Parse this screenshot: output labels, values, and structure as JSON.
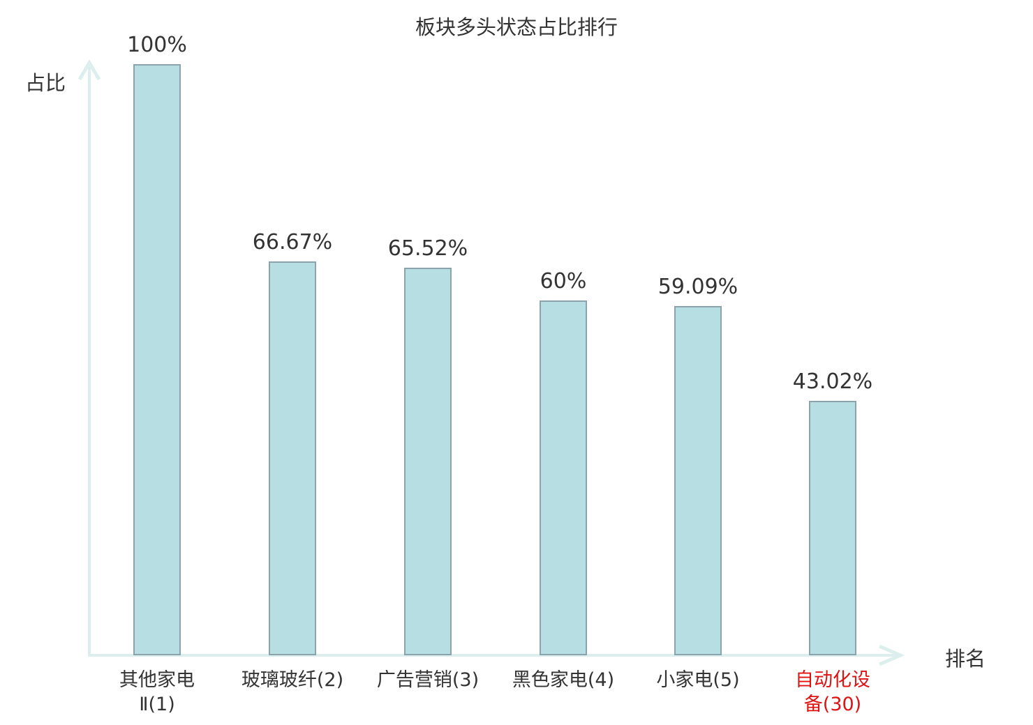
{
  "chart_data": {
    "type": "bar",
    "title": "板块多头状态占比排行",
    "xlabel": "排名",
    "ylabel": "占比",
    "categories": [
      "其他家电Ⅱ(1)",
      "玻璃玻纤(2)",
      "广告营销(3)",
      "黑色家电(4)",
      "小家电(5)",
      "自动化设备(30)"
    ],
    "tick_labels": [
      "其他家电\nⅡ(1)",
      "玻璃玻纤(2)",
      "广告营销(3)",
      "黑色家电(4)",
      "小家电(5)",
      "自动化设\n备(30)"
    ],
    "values": [
      100,
      66.67,
      65.52,
      60,
      59.09,
      43.02
    ],
    "value_labels": [
      "100%",
      "66.67%",
      "65.52%",
      "60%",
      "59.09%",
      "43.02%"
    ],
    "highlighted_category_index": 5,
    "ylim": [
      0,
      100
    ],
    "grid": false,
    "legend": false,
    "colors": {
      "bar_fill": "#b7dee2",
      "bar_border": "#8ba4ab",
      "axis": "#dcefee",
      "text": "#333333",
      "highlight_text": "#e01212"
    }
  }
}
